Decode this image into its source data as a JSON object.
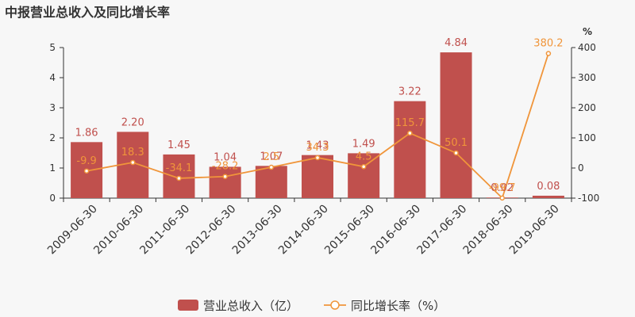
{
  "title": "中报营业总收入及同比增长率",
  "chart_data": {
    "type": "bar+line",
    "categories": [
      "2009-06-30",
      "2010-06-30",
      "2011-06-30",
      "2012-06-30",
      "2013-06-30",
      "2014-06-30",
      "2015-06-30",
      "2016-06-30",
      "2017-06-30",
      "2018-06-30",
      "2019-06-30"
    ],
    "series": [
      {
        "name": "营业总收入（亿）",
        "type": "bar",
        "axis": "left",
        "color": "#c0504d",
        "values": [
          1.86,
          2.2,
          1.45,
          1.04,
          1.07,
          1.43,
          1.49,
          3.22,
          4.84,
          0.02,
          0.08
        ],
        "labels": [
          "1.86",
          "2.20",
          "1.45",
          "1.04",
          "1.07",
          "1.43",
          "1.49",
          "3.22",
          "4.84",
          "0.02",
          "0.08"
        ]
      },
      {
        "name": "同比增长率（%）",
        "type": "line",
        "axis": "right",
        "color": "#f0953a",
        "values": [
          -9.9,
          18.3,
          -34.1,
          -28.2,
          2.5,
          34.3,
          4.5,
          115.7,
          50.1,
          -99.7,
          380.2
        ],
        "labels": [
          "-9.9",
          "18.3",
          "-34.1",
          "-28.2",
          "2.5",
          "34.3",
          "4.5",
          "115.7",
          "50.1",
          "-99.7",
          "380.2"
        ]
      }
    ],
    "y_left": {
      "ylim": [
        0,
        5
      ],
      "ticks": [
        "0",
        "1",
        "2",
        "3",
        "4",
        "5"
      ]
    },
    "y_right": {
      "ylim": [
        -100,
        400
      ],
      "ticks": [
        "-100",
        "0",
        "100",
        "200",
        "300",
        "400"
      ],
      "unit": "%"
    },
    "legend_position": "bottom"
  }
}
